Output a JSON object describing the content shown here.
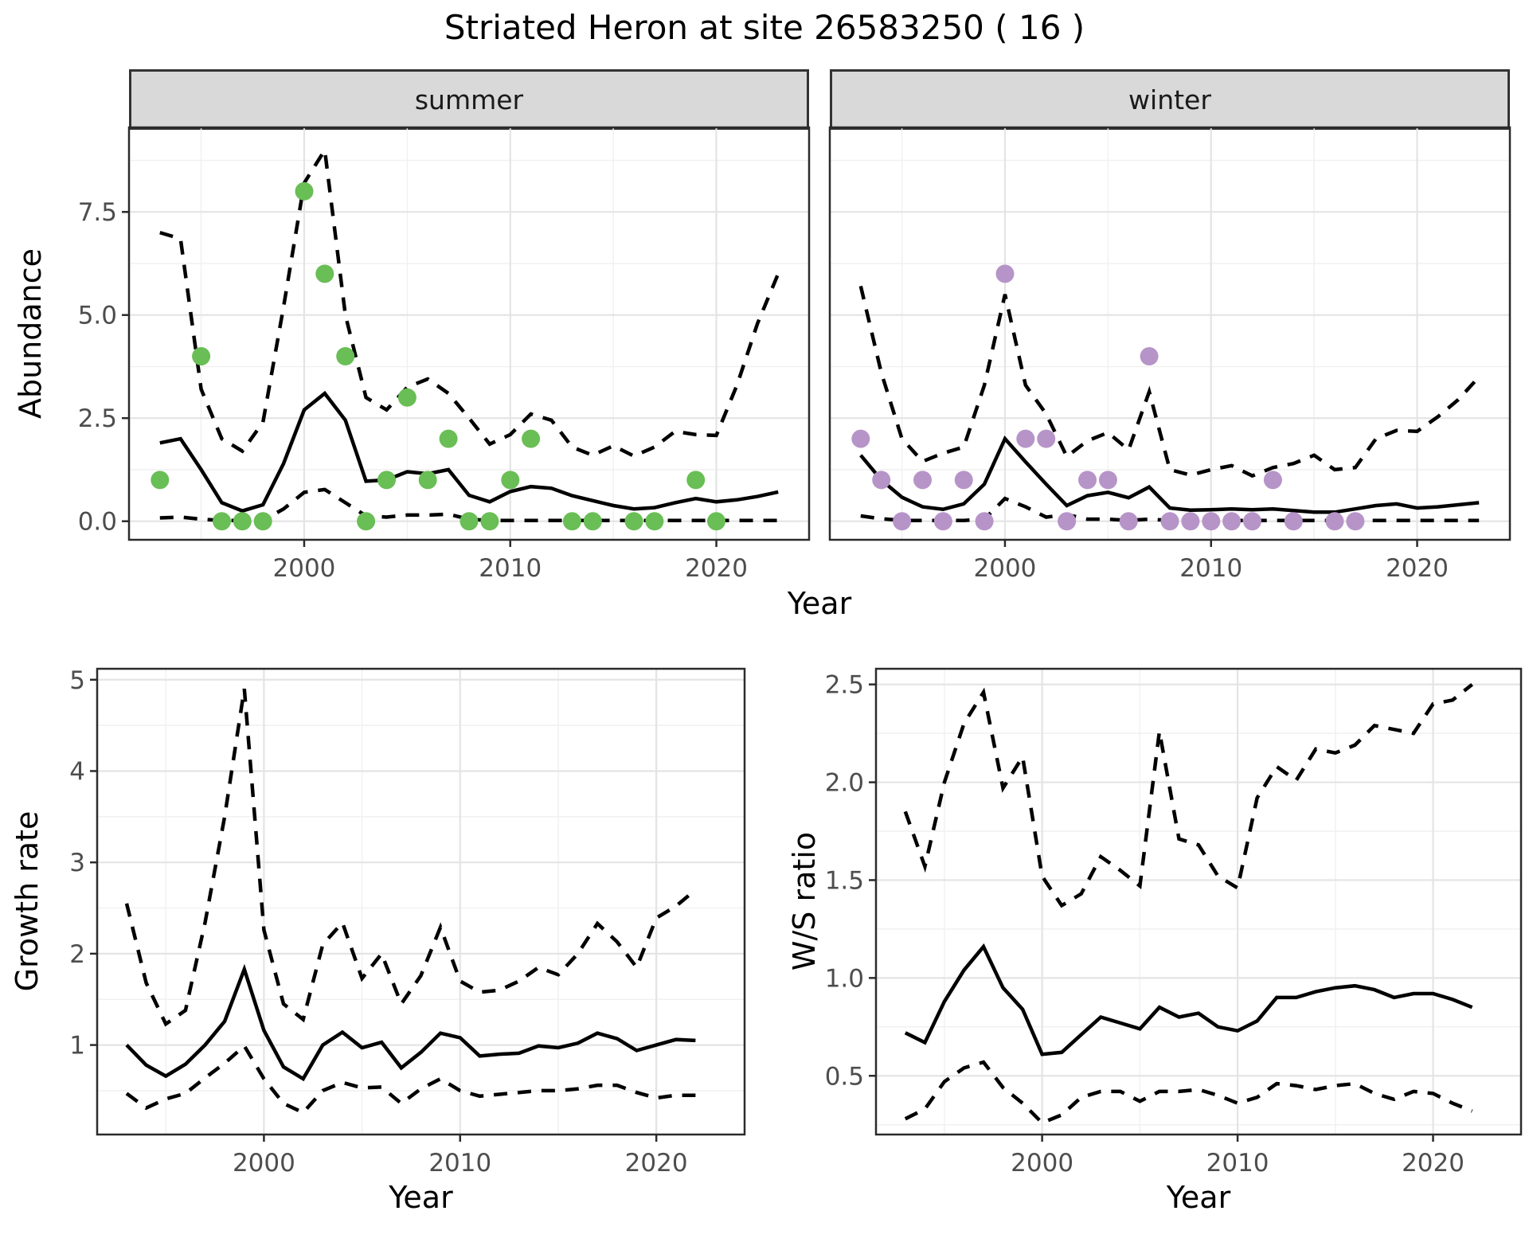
{
  "title": "Striated Heron at site 26583250 ( 16 )",
  "facets": {
    "summer": "summer",
    "winter": "winter"
  },
  "axes": {
    "abundance_label": "Abundance",
    "year_label_top": "Year",
    "growth_label": "Growth rate",
    "ws_label": "W/S ratio",
    "year_label_growth": "Year",
    "year_label_ws": "Year"
  },
  "colors": {
    "summer_point": "#69be55",
    "winter_point": "#b694c8",
    "line": "#000000",
    "strip_bg": "#d9d9d9",
    "panel_border": "#2b2b2b",
    "grid_major": "#e4e4e4",
    "grid_minor": "#f1f1f1",
    "tick_text": "#4d4d4d"
  },
  "chart_data": [
    {
      "id": "abundance-summer",
      "type": "line",
      "facet": "summer",
      "xlabel": "Year",
      "ylabel": "Abundance",
      "xlim": [
        1991.5,
        2024.5
      ],
      "ylim": [
        -0.45,
        9.55
      ],
      "xticks": [
        2000,
        2010,
        2020
      ],
      "xtick_labels": [
        "2000",
        "2010",
        "2020"
      ],
      "xminor": [
        1995,
        2005,
        2015
      ],
      "yticks": [
        0,
        2.5,
        5,
        7.5
      ],
      "ytick_labels": [
        "0.0",
        "2.5",
        "5.0",
        "7.5"
      ],
      "yminor": [
        1.25,
        3.75,
        6.25,
        8.75
      ],
      "x": [
        1993,
        1994,
        1995,
        1996,
        1997,
        1998,
        1999,
        2000,
        2001,
        2002,
        2003,
        2004,
        2005,
        2006,
        2007,
        2008,
        2009,
        2010,
        2011,
        2012,
        2013,
        2014,
        2015,
        2016,
        2017,
        2018,
        2019,
        2020,
        2021,
        2022,
        2023
      ],
      "series": [
        {
          "name": "upper_ci",
          "style": "dashed",
          "values": [
            7.0,
            6.85,
            3.2,
            2.0,
            1.7,
            2.4,
            5.2,
            8.2,
            9.0,
            5.0,
            3.0,
            2.7,
            3.25,
            3.45,
            3.1,
            2.5,
            1.87,
            2.1,
            2.6,
            2.45,
            1.8,
            1.6,
            1.83,
            1.58,
            1.8,
            2.18,
            2.1,
            2.08,
            3.3,
            4.8,
            6.0
          ]
        },
        {
          "name": "lower_ci",
          "style": "dashed",
          "values": [
            0.08,
            0.1,
            0.05,
            0.02,
            0.02,
            0.02,
            0.3,
            0.7,
            0.77,
            0.45,
            0.13,
            0.1,
            0.15,
            0.15,
            0.17,
            0.05,
            0.02,
            0.02,
            0.02,
            0.02,
            0.02,
            0.02,
            0.02,
            0.02,
            0.02,
            0.02,
            0.02,
            0.02,
            0.02,
            0.02,
            0.02
          ]
        },
        {
          "name": "median",
          "style": "solid",
          "values": [
            1.9,
            2.0,
            1.25,
            0.45,
            0.25,
            0.4,
            1.4,
            2.7,
            3.1,
            2.45,
            0.97,
            1.0,
            1.2,
            1.15,
            1.25,
            0.63,
            0.47,
            0.72,
            0.84,
            0.8,
            0.62,
            0.5,
            0.38,
            0.3,
            0.33,
            0.45,
            0.55,
            0.47,
            0.52,
            0.6,
            0.71
          ]
        }
      ],
      "points": {
        "color": "#69be55",
        "data": [
          [
            1993,
            1
          ],
          [
            1995,
            4
          ],
          [
            1996,
            0
          ],
          [
            1997,
            0
          ],
          [
            1998,
            0
          ],
          [
            2000,
            8
          ],
          [
            2001,
            6
          ],
          [
            2002,
            4
          ],
          [
            2003,
            0
          ],
          [
            2004,
            1
          ],
          [
            2005,
            3
          ],
          [
            2006,
            1
          ],
          [
            2007,
            2
          ],
          [
            2008,
            0
          ],
          [
            2009,
            0
          ],
          [
            2010,
            1
          ],
          [
            2011,
            2
          ],
          [
            2013,
            0
          ],
          [
            2014,
            0
          ],
          [
            2016,
            0
          ],
          [
            2017,
            0
          ],
          [
            2019,
            1
          ],
          [
            2020,
            0
          ]
        ]
      }
    },
    {
      "id": "abundance-winter",
      "type": "line",
      "facet": "winter",
      "xlabel": "Year",
      "ylabel": "Abundance",
      "xlim": [
        1991.5,
        2024.5
      ],
      "ylim": [
        -0.45,
        9.55
      ],
      "xticks": [
        2000,
        2010,
        2020
      ],
      "xtick_labels": [
        "2000",
        "2010",
        "2020"
      ],
      "xminor": [
        1995,
        2005,
        2015
      ],
      "yticks": [
        0,
        2.5,
        5,
        7.5
      ],
      "ytick_labels": [
        "0.0",
        "2.5",
        "5.0",
        "7.5"
      ],
      "yminor": [
        1.25,
        3.75,
        6.25,
        8.75
      ],
      "x": [
        1993,
        1994,
        1995,
        1996,
        1997,
        1998,
        1999,
        2000,
        2001,
        2002,
        2003,
        2004,
        2005,
        2006,
        2007,
        2008,
        2009,
        2010,
        2011,
        2012,
        2013,
        2014,
        2015,
        2016,
        2017,
        2018,
        2019,
        2020,
        2021,
        2022,
        2023
      ],
      "series": [
        {
          "name": "upper_ci",
          "style": "dashed",
          "values": [
            5.7,
            3.6,
            2.0,
            1.45,
            1.65,
            1.8,
            3.3,
            5.5,
            3.3,
            2.6,
            1.57,
            1.95,
            2.15,
            1.73,
            3.14,
            1.25,
            1.12,
            1.25,
            1.35,
            1.1,
            1.3,
            1.4,
            1.6,
            1.25,
            1.3,
            2.0,
            2.2,
            2.18,
            2.53,
            2.95,
            3.5
          ]
        },
        {
          "name": "lower_ci",
          "style": "dashed",
          "values": [
            0.13,
            0.06,
            0.02,
            0.02,
            0.02,
            0.02,
            0.05,
            0.55,
            0.35,
            0.1,
            0.16,
            0.05,
            0.05,
            0.02,
            0.05,
            0.02,
            0.02,
            0.02,
            0.02,
            0.02,
            0.02,
            0.02,
            0.02,
            0.02,
            0.02,
            0.02,
            0.02,
            0.02,
            0.02,
            0.02,
            0.02
          ]
        },
        {
          "name": "median",
          "style": "solid",
          "values": [
            1.6,
            1.0,
            0.58,
            0.35,
            0.29,
            0.42,
            0.9,
            2.0,
            1.44,
            0.9,
            0.38,
            0.62,
            0.7,
            0.57,
            0.83,
            0.32,
            0.27,
            0.28,
            0.3,
            0.28,
            0.3,
            0.26,
            0.22,
            0.22,
            0.3,
            0.38,
            0.42,
            0.32,
            0.35,
            0.4,
            0.45
          ]
        }
      ],
      "points": {
        "color": "#b694c8",
        "data": [
          [
            1993,
            2
          ],
          [
            1994,
            1
          ],
          [
            1995,
            0
          ],
          [
            1996,
            1
          ],
          [
            1997,
            0
          ],
          [
            1998,
            1
          ],
          [
            1999,
            0
          ],
          [
            2000,
            6
          ],
          [
            2001,
            2
          ],
          [
            2002,
            2
          ],
          [
            2003,
            0
          ],
          [
            2004,
            1
          ],
          [
            2005,
            1
          ],
          [
            2006,
            0
          ],
          [
            2007,
            4
          ],
          [
            2008,
            0
          ],
          [
            2009,
            0
          ],
          [
            2010,
            0
          ],
          [
            2011,
            0
          ],
          [
            2012,
            0
          ],
          [
            2013,
            1
          ],
          [
            2014,
            0
          ],
          [
            2016,
            0
          ],
          [
            2017,
            0
          ]
        ]
      }
    },
    {
      "id": "growth-rate",
      "type": "line",
      "xlabel": "Year",
      "ylabel": "Growth rate",
      "xlim": [
        1991.5,
        2024.5
      ],
      "ylim": [
        0.02,
        5.12
      ],
      "xticks": [
        2000,
        2010,
        2020
      ],
      "xtick_labels": [
        "2000",
        "2010",
        "2020"
      ],
      "xminor": [
        1995,
        2005,
        2015
      ],
      "yticks": [
        1,
        2,
        3,
        4,
        5
      ],
      "ytick_labels": [
        "1",
        "2",
        "3",
        "4",
        "5"
      ],
      "yminor": [
        0.5,
        1.5,
        2.5,
        3.5,
        4.5
      ],
      "x": [
        1993,
        1994,
        1995,
        1996,
        1997,
        1998,
        1999,
        2000,
        2001,
        2002,
        2003,
        2004,
        2005,
        2006,
        2007,
        2008,
        2009,
        2010,
        2011,
        2012,
        2013,
        2014,
        2015,
        2016,
        2017,
        2018,
        2019,
        2020,
        2021,
        2022
      ],
      "series": [
        {
          "name": "upper_ci",
          "style": "dashed",
          "values": [
            2.55,
            1.68,
            1.23,
            1.38,
            2.34,
            3.5,
            4.9,
            2.26,
            1.45,
            1.28,
            2.1,
            2.34,
            1.73,
            2.0,
            1.45,
            1.76,
            2.29,
            1.7,
            1.58,
            1.6,
            1.7,
            1.85,
            1.77,
            2.0,
            2.33,
            2.13,
            1.85,
            2.39,
            2.52,
            2.7
          ]
        },
        {
          "name": "lower_ci",
          "style": "dashed",
          "values": [
            0.47,
            0.31,
            0.41,
            0.47,
            0.64,
            0.8,
            0.99,
            0.63,
            0.36,
            0.26,
            0.5,
            0.59,
            0.53,
            0.54,
            0.36,
            0.52,
            0.63,
            0.5,
            0.44,
            0.46,
            0.48,
            0.5,
            0.5,
            0.52,
            0.56,
            0.56,
            0.48,
            0.42,
            0.45,
            0.45
          ]
        },
        {
          "name": "median",
          "style": "solid",
          "values": [
            1.0,
            0.78,
            0.66,
            0.79,
            1.0,
            1.26,
            1.83,
            1.16,
            0.76,
            0.63,
            1.0,
            1.14,
            0.97,
            1.03,
            0.75,
            0.92,
            1.13,
            1.08,
            0.88,
            0.9,
            0.91,
            0.99,
            0.97,
            1.02,
            1.13,
            1.07,
            0.94,
            1.0,
            1.06,
            1.05
          ]
        }
      ]
    },
    {
      "id": "ws-ratio",
      "type": "line",
      "xlabel": "Year",
      "ylabel": "W/S ratio",
      "xlim": [
        1991.5,
        2024.5
      ],
      "ylim": [
        0.2,
        2.58
      ],
      "xticks": [
        2000,
        2010,
        2020
      ],
      "xtick_labels": [
        "2000",
        "2010",
        "2020"
      ],
      "xminor": [
        1995,
        2005,
        2015
      ],
      "yticks": [
        0.5,
        1,
        1.5,
        2,
        2.5
      ],
      "ytick_labels": [
        "0.5",
        "1.0",
        "1.5",
        "2.0",
        "2.5"
      ],
      "yminor": [
        0.25,
        0.75,
        1.25,
        1.75,
        2.25
      ],
      "x": [
        1993,
        1994,
        1995,
        1996,
        1997,
        1998,
        1999,
        2000,
        2001,
        2002,
        2003,
        2004,
        2005,
        2006,
        2007,
        2008,
        2009,
        2010,
        2011,
        2012,
        2013,
        2014,
        2015,
        2016,
        2017,
        2018,
        2019,
        2020,
        2021,
        2022
      ],
      "series": [
        {
          "name": "upper_ci",
          "style": "dashed",
          "values": [
            1.85,
            1.57,
            2.0,
            2.3,
            2.46,
            1.97,
            2.13,
            1.52,
            1.37,
            1.43,
            1.62,
            1.55,
            1.47,
            2.26,
            1.71,
            1.68,
            1.52,
            1.46,
            1.92,
            2.08,
            2.01,
            2.17,
            2.15,
            2.19,
            2.29,
            2.27,
            2.25,
            2.4,
            2.42,
            2.5
          ]
        },
        {
          "name": "lower_ci",
          "style": "dashed",
          "values": [
            0.28,
            0.33,
            0.47,
            0.54,
            0.57,
            0.44,
            0.36,
            0.26,
            0.3,
            0.39,
            0.42,
            0.42,
            0.37,
            0.42,
            0.42,
            0.43,
            0.4,
            0.36,
            0.39,
            0.46,
            0.45,
            0.43,
            0.45,
            0.46,
            0.41,
            0.38,
            0.42,
            0.41,
            0.36,
            0.32
          ]
        },
        {
          "name": "median",
          "style": "solid",
          "values": [
            0.72,
            0.67,
            0.88,
            1.04,
            1.16,
            0.95,
            0.84,
            0.61,
            0.62,
            0.71,
            0.8,
            0.77,
            0.74,
            0.85,
            0.8,
            0.82,
            0.75,
            0.73,
            0.78,
            0.9,
            0.9,
            0.93,
            0.95,
            0.96,
            0.94,
            0.9,
            0.92,
            0.92,
            0.89,
            0.85
          ]
        }
      ]
    }
  ]
}
